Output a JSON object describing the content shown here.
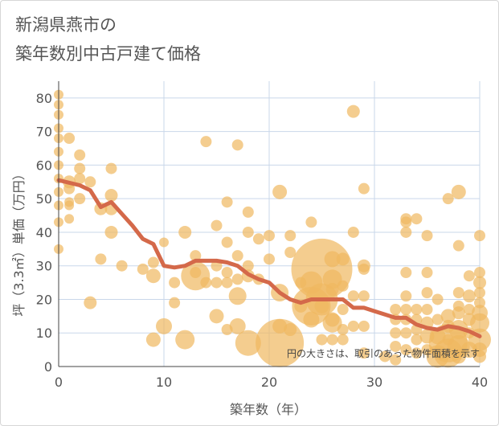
{
  "title_lines": [
    "新潟県燕市の",
    "築年数別中古戸建て価格"
  ],
  "chart_data": {
    "type": "scatter",
    "xlabel": "築年数（年）",
    "ylabel": "坪（3.3㎡）単価（万円）",
    "xlim": [
      0,
      40
    ],
    "ylim": [
      0,
      85
    ],
    "x_ticks": [
      0,
      10,
      20,
      30,
      40
    ],
    "y_ticks": [
      0,
      10,
      20,
      30,
      40,
      50,
      60,
      70,
      80
    ],
    "grid": true,
    "note": "円の大きさは、取引のあった物件面積を示す",
    "colors": {
      "bubble": "#f0b860",
      "trend": "#d4694a",
      "grid": "#c9d7ea",
      "axis": "#444444"
    },
    "series": [
      {
        "kind": "bubbles",
        "points": [
          [
            0,
            81,
            6
          ],
          [
            0,
            78,
            6
          ],
          [
            0,
            75,
            6
          ],
          [
            0,
            71,
            6
          ],
          [
            0,
            68,
            6
          ],
          [
            0,
            64,
            6
          ],
          [
            0,
            60,
            6
          ],
          [
            0,
            56,
            6
          ],
          [
            0,
            52,
            6
          ],
          [
            0,
            48,
            6
          ],
          [
            0,
            43,
            6
          ],
          [
            0,
            35,
            6
          ],
          [
            1,
            68,
            7
          ],
          [
            1,
            55,
            8
          ],
          [
            1,
            53,
            7
          ],
          [
            1,
            49,
            6
          ],
          [
            1,
            48,
            6
          ],
          [
            1,
            44,
            6
          ],
          [
            2,
            63,
            7
          ],
          [
            2,
            59,
            7
          ],
          [
            2,
            56,
            7
          ],
          [
            2,
            50,
            7
          ],
          [
            3,
            55,
            7
          ],
          [
            3,
            19,
            8
          ],
          [
            4,
            47,
            8
          ],
          [
            4,
            32,
            7
          ],
          [
            5,
            59,
            7
          ],
          [
            5,
            51,
            8
          ],
          [
            5,
            47,
            8
          ],
          [
            5,
            40,
            8
          ],
          [
            6,
            30,
            7
          ],
          [
            8,
            29,
            7
          ],
          [
            9,
            31,
            7
          ],
          [
            9,
            27,
            9
          ],
          [
            9,
            8,
            9
          ],
          [
            10,
            37,
            6
          ],
          [
            10,
            12,
            10
          ],
          [
            11,
            25,
            7
          ],
          [
            11,
            19,
            7
          ],
          [
            12,
            40,
            8
          ],
          [
            12,
            8,
            12
          ],
          [
            13,
            33,
            7
          ],
          [
            13,
            28,
            7
          ],
          [
            13,
            27,
            18
          ],
          [
            14,
            67,
            7
          ],
          [
            14,
            25,
            7
          ],
          [
            15,
            42,
            7
          ],
          [
            15,
            30,
            7
          ],
          [
            15,
            25,
            7
          ],
          [
            15,
            15,
            9
          ],
          [
            16,
            49,
            7
          ],
          [
            16,
            37,
            7
          ],
          [
            16,
            28,
            7
          ],
          [
            16,
            25,
            7
          ],
          [
            16,
            11,
            7
          ],
          [
            17,
            66,
            7
          ],
          [
            17,
            33,
            7
          ],
          [
            17,
            26,
            7
          ],
          [
            17,
            21,
            11
          ],
          [
            17,
            12,
            10
          ],
          [
            18,
            46,
            7
          ],
          [
            18,
            40,
            7
          ],
          [
            18,
            30,
            7
          ],
          [
            18,
            27,
            8
          ],
          [
            18,
            7,
            16
          ],
          [
            19,
            38,
            7
          ],
          [
            19,
            26,
            7
          ],
          [
            20,
            39,
            7
          ],
          [
            20,
            32,
            7
          ],
          [
            21,
            52,
            9
          ],
          [
            21,
            22,
            11
          ],
          [
            21,
            12,
            9
          ],
          [
            21,
            7,
            30
          ],
          [
            22,
            39,
            7
          ],
          [
            22,
            34,
            7
          ],
          [
            22,
            11,
            8
          ],
          [
            23,
            25,
            7
          ],
          [
            23,
            18,
            8
          ],
          [
            24,
            43,
            7
          ],
          [
            24,
            25,
            14
          ],
          [
            24,
            14,
            10
          ],
          [
            24,
            18,
            24
          ],
          [
            25,
            29,
            38
          ],
          [
            25,
            20,
            20
          ],
          [
            25,
            18,
            9
          ],
          [
            25,
            8,
            7
          ],
          [
            26,
            32,
            10
          ],
          [
            26,
            26,
            12
          ],
          [
            26,
            23,
            8
          ],
          [
            26,
            14,
            9
          ],
          [
            26,
            13,
            12
          ],
          [
            26,
            8,
            7
          ],
          [
            27,
            32,
            8
          ],
          [
            27,
            24,
            7
          ],
          [
            27,
            11,
            7
          ],
          [
            27,
            8,
            7
          ],
          [
            27,
            17,
            7
          ],
          [
            28,
            76,
            8
          ],
          [
            28,
            40,
            7
          ],
          [
            28,
            21,
            7
          ],
          [
            28,
            12,
            7
          ],
          [
            29,
            53,
            7
          ],
          [
            29,
            30,
            8
          ],
          [
            29,
            29,
            7
          ],
          [
            29,
            21,
            7
          ],
          [
            29,
            12,
            7
          ],
          [
            29,
            4,
            7
          ],
          [
            31,
            3,
            7
          ],
          [
            32,
            17,
            7
          ],
          [
            32,
            14,
            7
          ],
          [
            32,
            10,
            7
          ],
          [
            32,
            6,
            7
          ],
          [
            32,
            2,
            7
          ],
          [
            33,
            44,
            7
          ],
          [
            33,
            43,
            7
          ],
          [
            33,
            40,
            7
          ],
          [
            33,
            28,
            7
          ],
          [
            33,
            21,
            7
          ],
          [
            33,
            17,
            7
          ],
          [
            33,
            14,
            7
          ],
          [
            33,
            10,
            7
          ],
          [
            33,
            5,
            7
          ],
          [
            34,
            44,
            7
          ],
          [
            34,
            17,
            7
          ],
          [
            34,
            14,
            7
          ],
          [
            34,
            11,
            7
          ],
          [
            34,
            8,
            7
          ],
          [
            34,
            4,
            7
          ],
          [
            35,
            39,
            7
          ],
          [
            35,
            28,
            7
          ],
          [
            35,
            22,
            7
          ],
          [
            35,
            17,
            7
          ],
          [
            35,
            13,
            8
          ],
          [
            35,
            9,
            9
          ],
          [
            35,
            5,
            7
          ],
          [
            36,
            20,
            7
          ],
          [
            36,
            14,
            7
          ],
          [
            36,
            9,
            10
          ],
          [
            36,
            3,
            14
          ],
          [
            37,
            50,
            7
          ],
          [
            37,
            15,
            9
          ],
          [
            37,
            12,
            8
          ],
          [
            37,
            8,
            7
          ],
          [
            37,
            4,
            18
          ],
          [
            37,
            7,
            24
          ],
          [
            38,
            52,
            9
          ],
          [
            38,
            36,
            7
          ],
          [
            38,
            22,
            7
          ],
          [
            38,
            18,
            7
          ],
          [
            38,
            16,
            8
          ],
          [
            38,
            11,
            12
          ],
          [
            38,
            6,
            14
          ],
          [
            38,
            3,
            9
          ],
          [
            39,
            27,
            7
          ],
          [
            39,
            21,
            8
          ],
          [
            39,
            17,
            7
          ],
          [
            39,
            14,
            8
          ],
          [
            39,
            10,
            7
          ],
          [
            39,
            5,
            10
          ],
          [
            40,
            39,
            7
          ],
          [
            40,
            28,
            7
          ],
          [
            40,
            25,
            8
          ],
          [
            40,
            22,
            7
          ],
          [
            40,
            19,
            7
          ],
          [
            40,
            16,
            10
          ],
          [
            40,
            13,
            12
          ],
          [
            40,
            8,
            14
          ],
          [
            40,
            5,
            9
          ],
          [
            40,
            3,
            8
          ]
        ]
      },
      {
        "kind": "trend",
        "x": [
          0,
          2,
          3,
          4,
          5,
          6,
          7,
          8,
          9,
          10,
          11,
          12,
          13,
          14,
          15,
          16,
          17,
          18,
          19,
          20,
          21,
          22,
          23,
          24,
          25,
          26,
          27,
          28,
          29,
          30,
          31,
          32,
          33,
          34,
          35,
          36,
          37,
          38,
          39,
          40
        ],
        "y": [
          55.5,
          54,
          52.5,
          47.5,
          49,
          45.5,
          42,
          38,
          36.5,
          30,
          29.5,
          30,
          31.5,
          31.5,
          31.5,
          31,
          30,
          27.5,
          26,
          25,
          22,
          20,
          19,
          20,
          20,
          20,
          20,
          17.5,
          17.5,
          16.5,
          15.5,
          14.5,
          14.5,
          12.5,
          11.5,
          11,
          12,
          11.5,
          10.5,
          9
        ]
      }
    ]
  }
}
